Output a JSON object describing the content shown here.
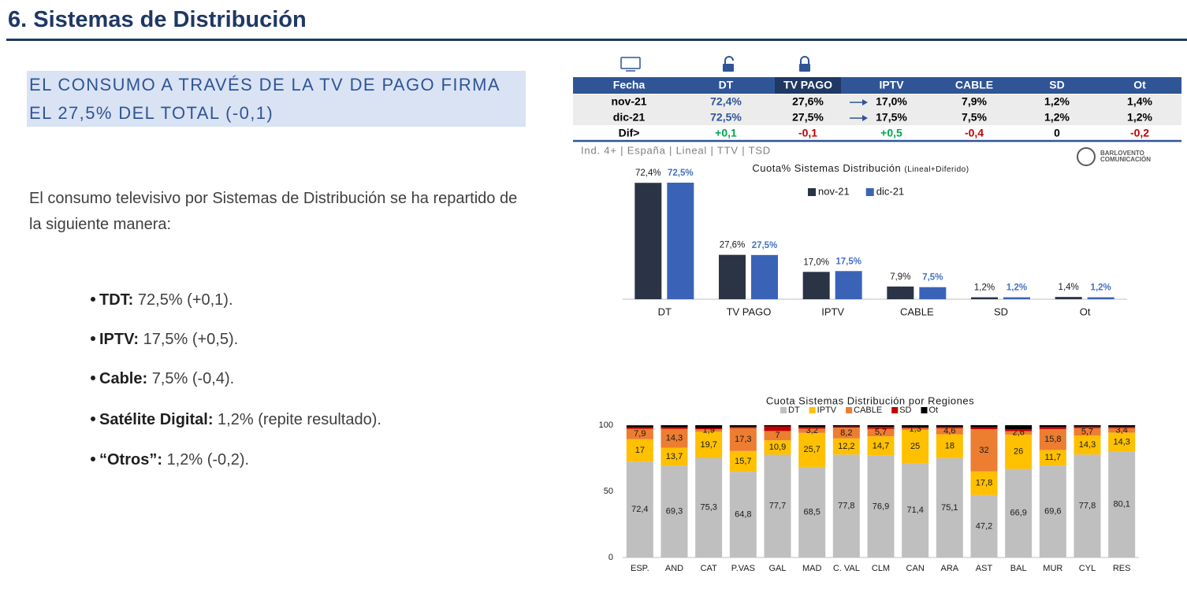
{
  "title": "6. Sistemas de Distribución",
  "headline": "EL CONSUMO A TRAVÉS DE LA TV DE PAGO FIRMA EL 27,5% DEL TOTAL (-0,1)",
  "intro": "El consumo televisivo por Sistemas de Distribución se ha repartido de la siguiente manera:",
  "bullets": [
    {
      "label": "TDT:",
      "text": "72,5% (+0,1)."
    },
    {
      "label": "IPTV:",
      "text": "17,5% (+0,5)."
    },
    {
      "label": "Cable:",
      "text": "7,5% (-0,4)."
    },
    {
      "label": "Satélite Digital:",
      "text": "1,2% (repite resultado)."
    },
    {
      "label": "“Otros”:",
      "text": "1,2% (-0,2)."
    }
  ],
  "table": {
    "header": [
      "Fecha",
      "DT",
      "TV PAGO",
      "IPTV",
      "CABLE",
      "SD",
      "Ot"
    ],
    "rows": [
      [
        "nov-21",
        "72,4%",
        "27,6%",
        "17,0%",
        "7,9%",
        "1,2%",
        "1,4%"
      ],
      [
        "dic-21",
        "72,5%",
        "27,5%",
        "17,5%",
        "7,5%",
        "1,2%",
        "1,2%"
      ],
      [
        "Dif>",
        "+0,1",
        "-0,1",
        "+0,5",
        "-0,4",
        "0",
        "-0,2"
      ]
    ]
  },
  "note": "Ind. 4+ | España | Lineal | TTV | TSD",
  "logo": [
    "BARLOVENTO",
    "COMUNICACIÓN"
  ],
  "chart_data": [
    {
      "type": "bar",
      "title": "Cuota% Sistemas Distribución",
      "subtitle": "(Lineal+Diferido)",
      "categories": [
        "DT",
        "TV PAGO",
        "IPTV",
        "CABLE",
        "SD",
        "Ot"
      ],
      "series": [
        {
          "name": "nov-21",
          "color": "#2b3445",
          "values": [
            72.4,
            27.6,
            17.0,
            7.9,
            1.2,
            1.4
          ],
          "value_labels": [
            "72,4%",
            "27,6%",
            "17,0%",
            "7,9%",
            "1,2%",
            "1,4%"
          ]
        },
        {
          "name": "dic-21",
          "color": "#3a63b8",
          "values": [
            72.5,
            27.5,
            17.5,
            7.5,
            1.2,
            1.2
          ],
          "value_labels": [
            "72,5%",
            "27,5%",
            "17,5%",
            "7,5%",
            "1,2%",
            "1,2%"
          ]
        }
      ],
      "legend": "top"
    },
    {
      "type": "bar",
      "stacked": true,
      "title": "Cuota Sistemas Distribución por Regiones",
      "categories": [
        "ESP.",
        "AND",
        "CAT",
        "P.VAS",
        "GAL",
        "MAD",
        "C. VAL",
        "CLM",
        "CAN",
        "ARA",
        "AST",
        "BAL",
        "MUR",
        "CYL",
        "RES"
      ],
      "series": [
        {
          "name": "DT",
          "color": "#bfbfbf",
          "values": [
            72.4,
            69.3,
            75.3,
            64.8,
            77.7,
            68.5,
            77.8,
            76.9,
            71.4,
            75.1,
            47.2,
            66.9,
            69.6,
            77.8,
            80.1
          ],
          "value_labels": [
            "72,4",
            "69,3",
            "75,3",
            "64,8",
            "77,7",
            "68,5",
            "77,8",
            "76,9",
            "71,4",
            "75,1",
            "47,2",
            "66,9",
            "69,6",
            "77,8",
            "80,1"
          ]
        },
        {
          "name": "IPTV",
          "color": "#ffc000",
          "values": [
            17,
            13.7,
            19.7,
            15.7,
            10.9,
            25.7,
            12.2,
            14.7,
            25,
            18,
            17.8,
            26,
            11.7,
            14.3,
            14.3
          ],
          "value_labels": [
            "17",
            "13,7",
            "19,7",
            "15,7",
            "10,9",
            "25,7",
            "12,2",
            "14,7",
            "25",
            "18",
            "17,8",
            "26",
            "11,7",
            "14,3",
            "14,3"
          ]
        },
        {
          "name": "CABLE",
          "color": "#ed7d31",
          "values": [
            7.9,
            14.3,
            1.9,
            17.3,
            7,
            3.2,
            8.2,
            5.7,
            1.3,
            4.6,
            32,
            2.6,
            15.8,
            5.7,
            3.4
          ],
          "value_labels": [
            "7,9",
            "14,3",
            "1,9",
            "17,3",
            "7",
            "3,2",
            "8,2",
            "5,7",
            "1,3",
            "4,6",
            "32",
            "2,6",
            "15,8",
            "5,7",
            "3,4"
          ]
        },
        {
          "name": "SD",
          "color": "#c00000",
          "values": [
            1.2,
            1.2,
            1.0,
            1.0,
            3.5,
            1.2,
            0.8,
            1.4,
            0.8,
            1.1,
            1.5,
            1.5,
            1.5,
            1.1,
            1.0
          ]
        },
        {
          "name": "Ot",
          "color": "#000000",
          "values": [
            1.4,
            1.5,
            2.1,
            1.2,
            0.9,
            1.4,
            1.0,
            1.3,
            1.5,
            1.2,
            1.5,
            3.0,
            1.4,
            1.1,
            1.2
          ]
        }
      ],
      "ylim": [
        0,
        100
      ],
      "yticks": [
        0,
        50,
        100
      ],
      "grid": false,
      "legend": "top"
    }
  ]
}
